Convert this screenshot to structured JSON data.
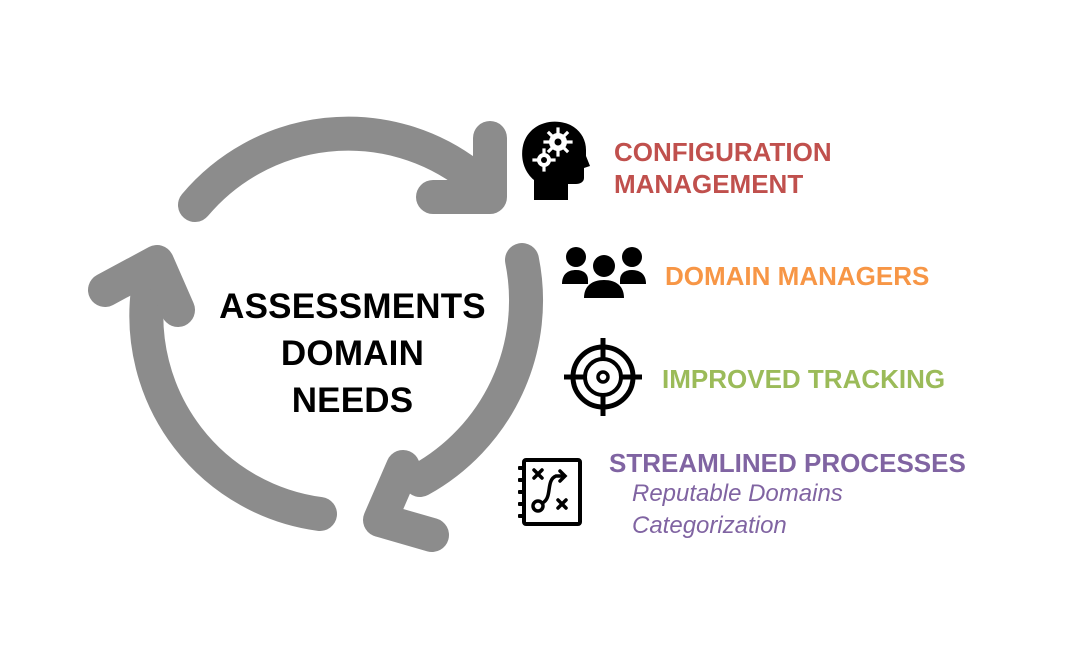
{
  "center": {
    "lines": [
      "ASSESSMENTS",
      "DOMAIN",
      "NEEDS"
    ]
  },
  "items": [
    {
      "icon": "head-gears-icon",
      "lines": [
        "CONFIGURATION",
        "MANAGEMENT"
      ],
      "color": "#c0504d"
    },
    {
      "icon": "group-people-icon",
      "label": "DOMAIN MANAGERS",
      "color": "#f79646"
    },
    {
      "icon": "crosshair-target-icon",
      "label": "IMPROVED TRACKING",
      "color": "#9bbb59"
    },
    {
      "icon": "strategy-plan-icon",
      "label": "STREAMLINED PROCESSES",
      "color": "#8064a2",
      "subitems": [
        "Reputable Domains",
        "Categorization"
      ]
    }
  ],
  "colors": {
    "arrow": "#8c8c8c",
    "icon": "#000000",
    "text": "#000000"
  }
}
